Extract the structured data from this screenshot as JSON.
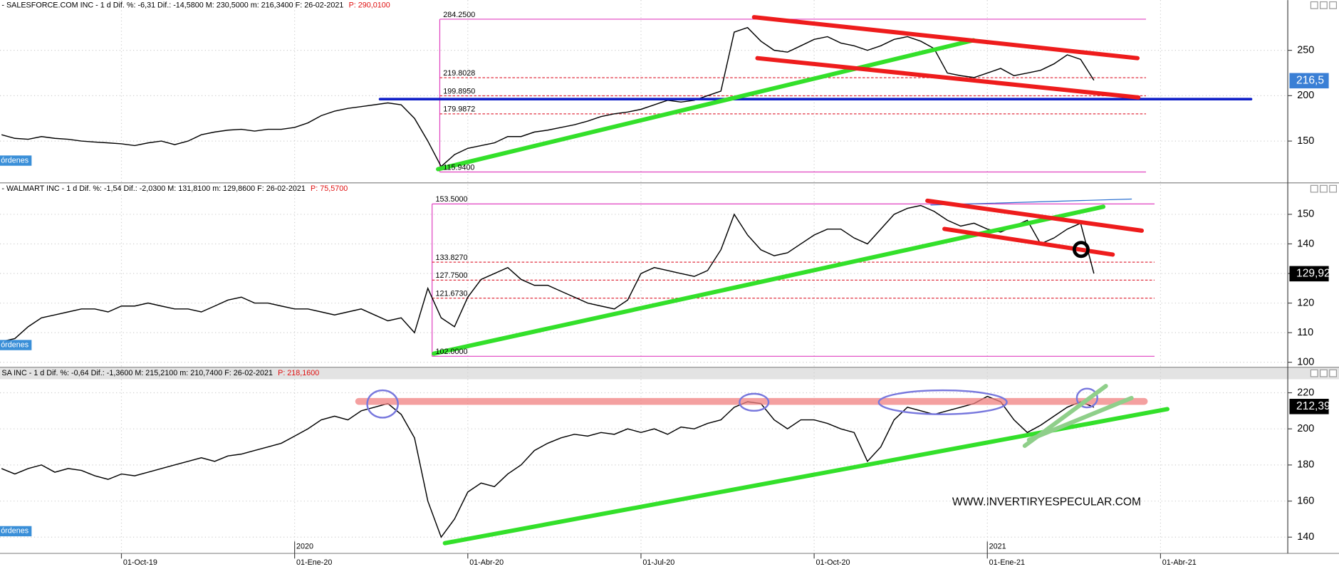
{
  "x_axis": {
    "categories": [
      null,
      null,
      null,
      null,
      null,
      null,
      null,
      null,
      null,
      "01-Oct-19",
      null,
      null,
      null,
      null,
      null,
      null,
      null,
      null,
      null,
      null,
      null,
      null,
      "01-Ene-20",
      null,
      null,
      null,
      null,
      null,
      null,
      null,
      null,
      null,
      null,
      null,
      null,
      "01-Abr-20",
      null,
      null,
      null,
      null,
      null,
      null,
      null,
      null,
      null,
      null,
      null,
      null,
      "01-Jul-20",
      null,
      null,
      null,
      null,
      null,
      null,
      null,
      null,
      null,
      null,
      null,
      null,
      "01-Oct-20",
      null,
      null,
      null,
      null,
      null,
      null,
      null,
      null,
      null,
      null,
      null,
      null,
      "01-Ene-21",
      null,
      null,
      null,
      null,
      null,
      null,
      null,
      null,
      null,
      null,
      null,
      null,
      "01-Abr-21"
    ],
    "years": [
      "2020",
      "2021"
    ]
  },
  "watermark": "WWW.INVERTIRYESPECULAR.COM",
  "chart_data": [
    {
      "type": "line",
      "title": "- SALESFORCE.COM INC  -  1 d  Dif. %: -6,31  Dif.: -14,5800  M: 230,5000  m: 216,3400  F: 26-02-2021",
      "title_price": "P: 290,0100",
      "orders_label": "órdenes",
      "color": "#000000",
      "ylim": [
        104,
        294
      ],
      "yticks": [
        150,
        200,
        250
      ],
      "grid": true,
      "last_price": {
        "value": 216.5,
        "label": "216,5"
      },
      "tag_color": "#3a7fd5",
      "levels": [
        {
          "value": 284.25,
          "label": "284.2500"
        },
        {
          "value": 219.8028,
          "label": "219.8028"
        },
        {
          "value": 199.895,
          "label": "199.8950"
        },
        {
          "value": 179.9872,
          "label": "179.9872"
        },
        {
          "value": 115.94,
          "label": "115.9400"
        }
      ],
      "values": [
        157,
        153,
        152,
        155,
        153,
        152,
        150,
        149,
        148,
        147,
        145,
        148,
        150,
        146,
        150,
        157,
        160,
        162,
        163,
        161,
        163,
        163,
        165,
        170,
        178,
        183,
        186,
        188,
        190,
        192,
        190,
        175,
        150,
        122,
        135,
        142,
        145,
        148,
        155,
        155,
        160,
        162,
        165,
        168,
        172,
        177,
        180,
        182,
        185,
        190,
        195,
        193,
        195,
        200,
        205,
        270,
        275,
        260,
        250,
        248,
        255,
        262,
        265,
        258,
        255,
        250,
        255,
        262,
        265,
        260,
        252,
        225,
        222,
        220,
        225,
        230,
        222,
        225,
        228,
        235,
        245,
        240,
        217,
        null,
        null,
        null,
        null,
        null
      ]
    },
    {
      "type": "line",
      "title": "- WALMART INC  -  1 d  Dif. %: -1,54  Dif.: -2,0300  M: 131,8100  m: 129,8600  F: 26-02-2021",
      "title_price": "P: 75,5700",
      "orders_label": "órdenes",
      "color": "#000000",
      "ylim": [
        98.3,
        156.6
      ],
      "yticks": [
        100,
        110,
        120,
        130,
        140,
        150
      ],
      "grid": true,
      "last_price": {
        "value": 129.92,
        "label": "129,92"
      },
      "tag_color": "#000000",
      "levels": [
        {
          "value": 153.5,
          "label": "153.5000"
        },
        {
          "value": 133.827,
          "label": "133.8270"
        },
        {
          "value": 127.75,
          "label": "127.7500"
        },
        {
          "value": 121.673,
          "label": "121.6730"
        },
        {
          "value": 102,
          "label": "102.0000"
        }
      ],
      "values": [
        107,
        108,
        112,
        115,
        116,
        117,
        118,
        118,
        117,
        119,
        119,
        120,
        119,
        118,
        118,
        117,
        119,
        121,
        122,
        120,
        120,
        119,
        118,
        118,
        117,
        116,
        117,
        118,
        116,
        114,
        115,
        110,
        125,
        115,
        112,
        122,
        128,
        130,
        132,
        128,
        126,
        126,
        124,
        122,
        120,
        119,
        118,
        121,
        130,
        132,
        131,
        130,
        129,
        131,
        138,
        150,
        143,
        138,
        136,
        137,
        140,
        143,
        145,
        145,
        142,
        140,
        145,
        150,
        152,
        153,
        151,
        148,
        146,
        147,
        145,
        144,
        146,
        148,
        140,
        142,
        145,
        147,
        130,
        null,
        null,
        null,
        null,
        null
      ]
    },
    {
      "type": "line",
      "title": "SA INC  -  1 d  Dif. %: -0,64  Dif.: -1,3600  M: 215,2100  m: 210,7400  F: 26-02-2021",
      "title_price": "P: 218,1600",
      "orders_label": "órdenes",
      "color": "#000000",
      "ylim": [
        131,
        227.5
      ],
      "yticks": [
        140,
        160,
        180,
        200,
        220
      ],
      "grid": true,
      "last_price": {
        "value": 212.39,
        "label": "212,39"
      },
      "tag_color": "#000000",
      "values": [
        178,
        175,
        178,
        180,
        176,
        178,
        177,
        174,
        172,
        175,
        174,
        176,
        178,
        180,
        182,
        184,
        182,
        185,
        186,
        188,
        190,
        192,
        196,
        200,
        205,
        207,
        205,
        210,
        212,
        214,
        208,
        195,
        160,
        140,
        150,
        165,
        170,
        168,
        175,
        180,
        188,
        192,
        195,
        197,
        196,
        198,
        197,
        200,
        198,
        200,
        197,
        201,
        200,
        203,
        205,
        212,
        215,
        214,
        205,
        200,
        205,
        205,
        203,
        200,
        198,
        182,
        190,
        205,
        212,
        210,
        208,
        210,
        212,
        214,
        218,
        215,
        205,
        198,
        202,
        207,
        212,
        215,
        212,
        null,
        null,
        null,
        null,
        null
      ]
    }
  ]
}
